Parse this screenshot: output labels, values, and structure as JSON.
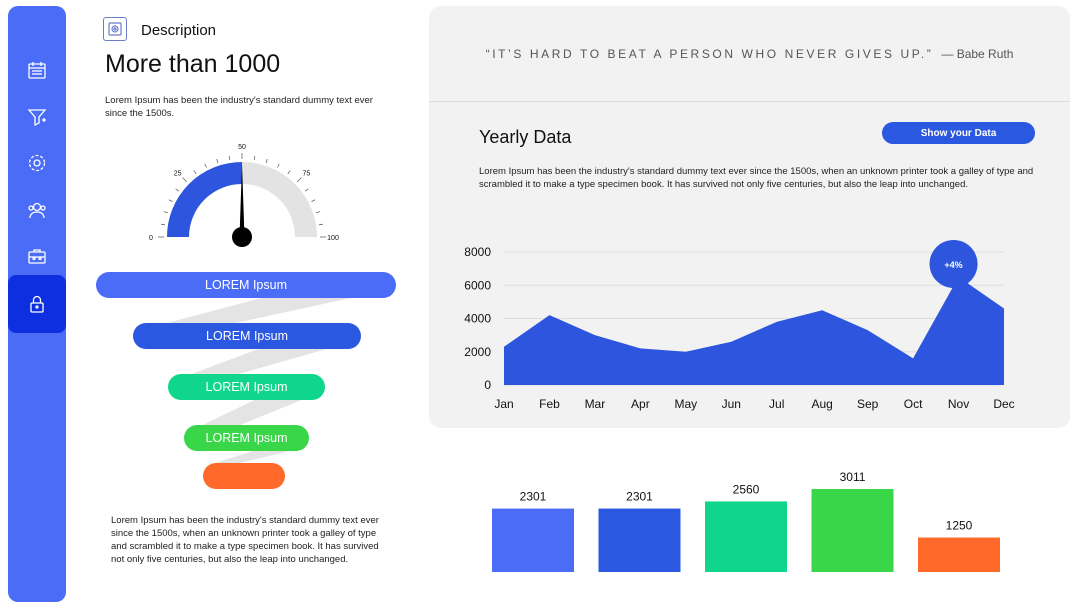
{
  "sidebar": {
    "items": [
      {
        "name": "calendar-icon"
      },
      {
        "name": "funnel-icon"
      },
      {
        "name": "settings-icon"
      },
      {
        "name": "team-icon"
      },
      {
        "name": "briefcase-icon"
      },
      {
        "name": "lock-icon",
        "active": true
      }
    ]
  },
  "left": {
    "description_label": "Description",
    "title": "More than 1000",
    "intro_text": "Lorem Ipsum has been the industry's standard dummy text ever since the 1500s.",
    "bottom_text": "Lorem Ipsum has been the industry's standard dummy text ever since the 1500s, when an unknown printer took a galley of type and scrambled it to make a type specimen book. It has survived not only five centuries, but also the leap into unchanged."
  },
  "gauge": {
    "value": 50,
    "min": 0,
    "max": 100,
    "tick_labels": [
      "0",
      "25",
      "50",
      "75",
      "100"
    ],
    "fill_color": "#2d55dd",
    "track_color": "#e3e3e3"
  },
  "funnel": {
    "items": [
      {
        "label_bold": "LOREM",
        "label": "Ipsum",
        "color": "#4a6cf7"
      },
      {
        "label_bold": "LOREM",
        "label": "Ipsum",
        "color": "#2b58e0"
      },
      {
        "label_bold": "LOREM",
        "label": "Ipsum",
        "color": "#10d68c"
      },
      {
        "label_bold": "LOREM",
        "label": "Ipsum",
        "color": "#3ad64a"
      },
      {
        "label_bold": "",
        "label": "",
        "color": "#ff6a2b"
      }
    ]
  },
  "quote": {
    "text": "“IT’S HARD TO BEAT A PERSON WHO NEVER GIVES UP.”",
    "author": "— Babe Ruth"
  },
  "yearly": {
    "title": "Yearly Data",
    "button_label": "Show your  Data",
    "text": "Lorem Ipsum has been the industry's standard dummy text ever since the 1500s, when an unknown printer took a galley of type and scrambled it to make a type specimen book. It has survived not only five centuries, but also the leap into unchanged.",
    "badge": "+4%"
  },
  "chart_data": [
    {
      "type": "area",
      "categories": [
        "Jan",
        "Feb",
        "Mar",
        "Apr",
        "May",
        "Jun",
        "Jul",
        "Aug",
        "Sep",
        "Oct",
        "Nov",
        "Dec"
      ],
      "values": [
        2300,
        4200,
        3000,
        2200,
        2000,
        2600,
        3800,
        4500,
        3300,
        1600,
        6500,
        4600
      ],
      "yticks": [
        0,
        2000,
        4000,
        6000,
        8000
      ],
      "ylim": [
        0,
        8000
      ],
      "color": "#2d55dd",
      "annotation": {
        "text": "+4%",
        "category": "Nov"
      }
    },
    {
      "type": "bar",
      "values": [
        2301,
        2301,
        2560,
        3011,
        1250
      ],
      "labels": [
        "2301",
        "2301",
        "2560",
        "3011",
        "1250"
      ],
      "colors": [
        "#4a6cf7",
        "#2b58e0",
        "#10d68c",
        "#3ad64a",
        "#ff6a2b"
      ]
    }
  ]
}
